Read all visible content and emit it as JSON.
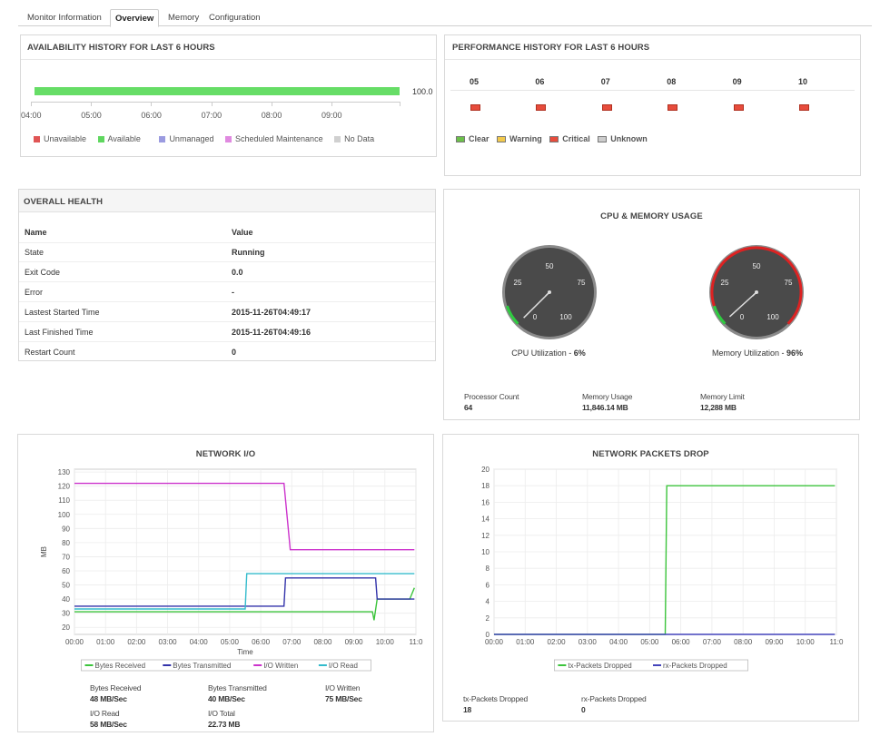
{
  "tabs": [
    {
      "label": "Monitor Information"
    },
    {
      "label": "Overview"
    },
    {
      "label": "Memory"
    },
    {
      "label": "Configuration"
    }
  ],
  "availability": {
    "title": "AVAILABILITY HISTORY FOR LAST 6 HOURS",
    "value_label": "100.0",
    "ticks": [
      "04:00",
      "05:00",
      "06:00",
      "07:00",
      "08:00",
      "09:00"
    ],
    "legend": [
      {
        "label": "Unavailable",
        "color": "#e05555"
      },
      {
        "label": "Available",
        "color": "#5fd75f"
      },
      {
        "label": "Unmanaged",
        "color": "#9b9be0"
      },
      {
        "label": "Scheduled Maintenance",
        "color": "#e08ae0"
      },
      {
        "label": "No Data",
        "color": "#d0d0d0"
      }
    ]
  },
  "performance": {
    "title": "PERFORMANCE HISTORY FOR LAST 6 HOURS",
    "hours": [
      "05",
      "06",
      "07",
      "08",
      "09",
      "10"
    ],
    "legend": [
      {
        "label": "Clear",
        "color": "#6cc04a"
      },
      {
        "label": "Warning",
        "color": "#f2c94c"
      },
      {
        "label": "Critical",
        "color": "#e74c3c"
      },
      {
        "label": "Unknown",
        "color": "#cccccc"
      }
    ]
  },
  "health": {
    "title": "OVERALL HEALTH",
    "header": {
      "name": "Name",
      "value": "Value"
    },
    "rows": [
      {
        "name": "State",
        "value": "Running"
      },
      {
        "name": "Exit Code",
        "value": "0.0"
      },
      {
        "name": "Error",
        "value": "-"
      },
      {
        "name": "Lastest Started Time",
        "value": "2015-11-26T04:49:17"
      },
      {
        "name": "Last Finished Time",
        "value": "2015-11-26T04:49:16"
      },
      {
        "name": "Restart Count",
        "value": "0"
      }
    ]
  },
  "cpu_memory": {
    "title": "CPU & MEMORY USAGE",
    "gauge_labels": [
      "0",
      "25",
      "50",
      "75",
      "100"
    ],
    "cpu": {
      "label": "CPU Utilization - ",
      "value": "6%",
      "percent": 6
    },
    "memory": {
      "label": "Memory Utilization - ",
      "value": "96%",
      "percent": 96
    },
    "stats": [
      {
        "label": "Processor Count",
        "value": "64"
      },
      {
        "label": "Memory Usage",
        "value": "11,846.14 MB"
      },
      {
        "label": "Memory Limit",
        "value": "12,288 MB"
      }
    ]
  },
  "network_io": {
    "title": "NETWORK I/O",
    "stats": [
      {
        "label": "Bytes Received",
        "value": "48 MB/Sec"
      },
      {
        "label": "Bytes Transmitted",
        "value": "40 MB/Sec"
      },
      {
        "label": "I/O Written",
        "value": "75 MB/Sec"
      },
      {
        "label": "I/O Read",
        "value": "58 MB/Sec"
      },
      {
        "label": "I/O Total",
        "value": "22.73 MB"
      }
    ]
  },
  "packets_drop": {
    "title": "NETWORK PACKETS DROP",
    "stats": [
      {
        "label": "tx-Packets Dropped",
        "value": "18"
      },
      {
        "label": "rx-Packets Dropped",
        "value": "0"
      }
    ]
  },
  "chart_data": [
    {
      "type": "line",
      "title": "NETWORK I/O",
      "xlabel": "Time",
      "ylabel": "MB",
      "xlim": [
        0,
        11
      ],
      "ylim": [
        15,
        132
      ],
      "x_ticks": [
        "00:00",
        "01:00",
        "02:00",
        "03:00",
        "04:00",
        "05:00",
        "06:00",
        "07:00",
        "08:00",
        "09:00",
        "10:00",
        "11:0"
      ],
      "y_ticks": [
        20,
        30,
        40,
        50,
        60,
        70,
        80,
        90,
        100,
        110,
        120,
        130
      ],
      "series": [
        {
          "name": "Bytes Received",
          "color": "#3cc43c",
          "points": [
            [
              0,
              31
            ],
            [
              9.6,
              31
            ],
            [
              9.65,
              25
            ],
            [
              9.75,
              40
            ],
            [
              10.8,
              40
            ],
            [
              10.95,
              48
            ]
          ]
        },
        {
          "name": "Bytes Transmitted",
          "color": "#3333aa",
          "points": [
            [
              0,
              35
            ],
            [
              6.75,
              35
            ],
            [
              6.8,
              55
            ],
            [
              9.7,
              55
            ],
            [
              9.75,
              40
            ],
            [
              10.95,
              40
            ]
          ]
        },
        {
          "name": "I/O Written",
          "color": "#cc33cc",
          "points": [
            [
              0,
              122
            ],
            [
              6.75,
              122
            ],
            [
              6.95,
              75
            ],
            [
              10.95,
              75
            ]
          ]
        },
        {
          "name": "I/O Read",
          "color": "#33bbcc",
          "points": [
            [
              0,
              33
            ],
            [
              5.5,
              33
            ],
            [
              5.55,
              58
            ],
            [
              10.95,
              58
            ]
          ]
        }
      ]
    },
    {
      "type": "line",
      "title": "NETWORK PACKETS DROP",
      "xlabel": "",
      "ylabel": "",
      "xlim": [
        0,
        11
      ],
      "ylim": [
        0,
        20
      ],
      "x_ticks": [
        "00:00",
        "01:00",
        "02:00",
        "03:00",
        "04:00",
        "05:00",
        "06:00",
        "07:00",
        "08:00",
        "09:00",
        "10:00",
        "11:0"
      ],
      "y_ticks": [
        0,
        2,
        4,
        6,
        8,
        10,
        12,
        14,
        16,
        18,
        20
      ],
      "series": [
        {
          "name": "tx-Packets Dropped",
          "color": "#3cc43c",
          "points": [
            [
              0,
              0
            ],
            [
              5.5,
              0
            ],
            [
              5.55,
              18
            ],
            [
              10.95,
              18
            ]
          ]
        },
        {
          "name": "rx-Packets Dropped",
          "color": "#4444bb",
          "points": [
            [
              0,
              0
            ],
            [
              10.95,
              0
            ]
          ]
        }
      ]
    }
  ]
}
